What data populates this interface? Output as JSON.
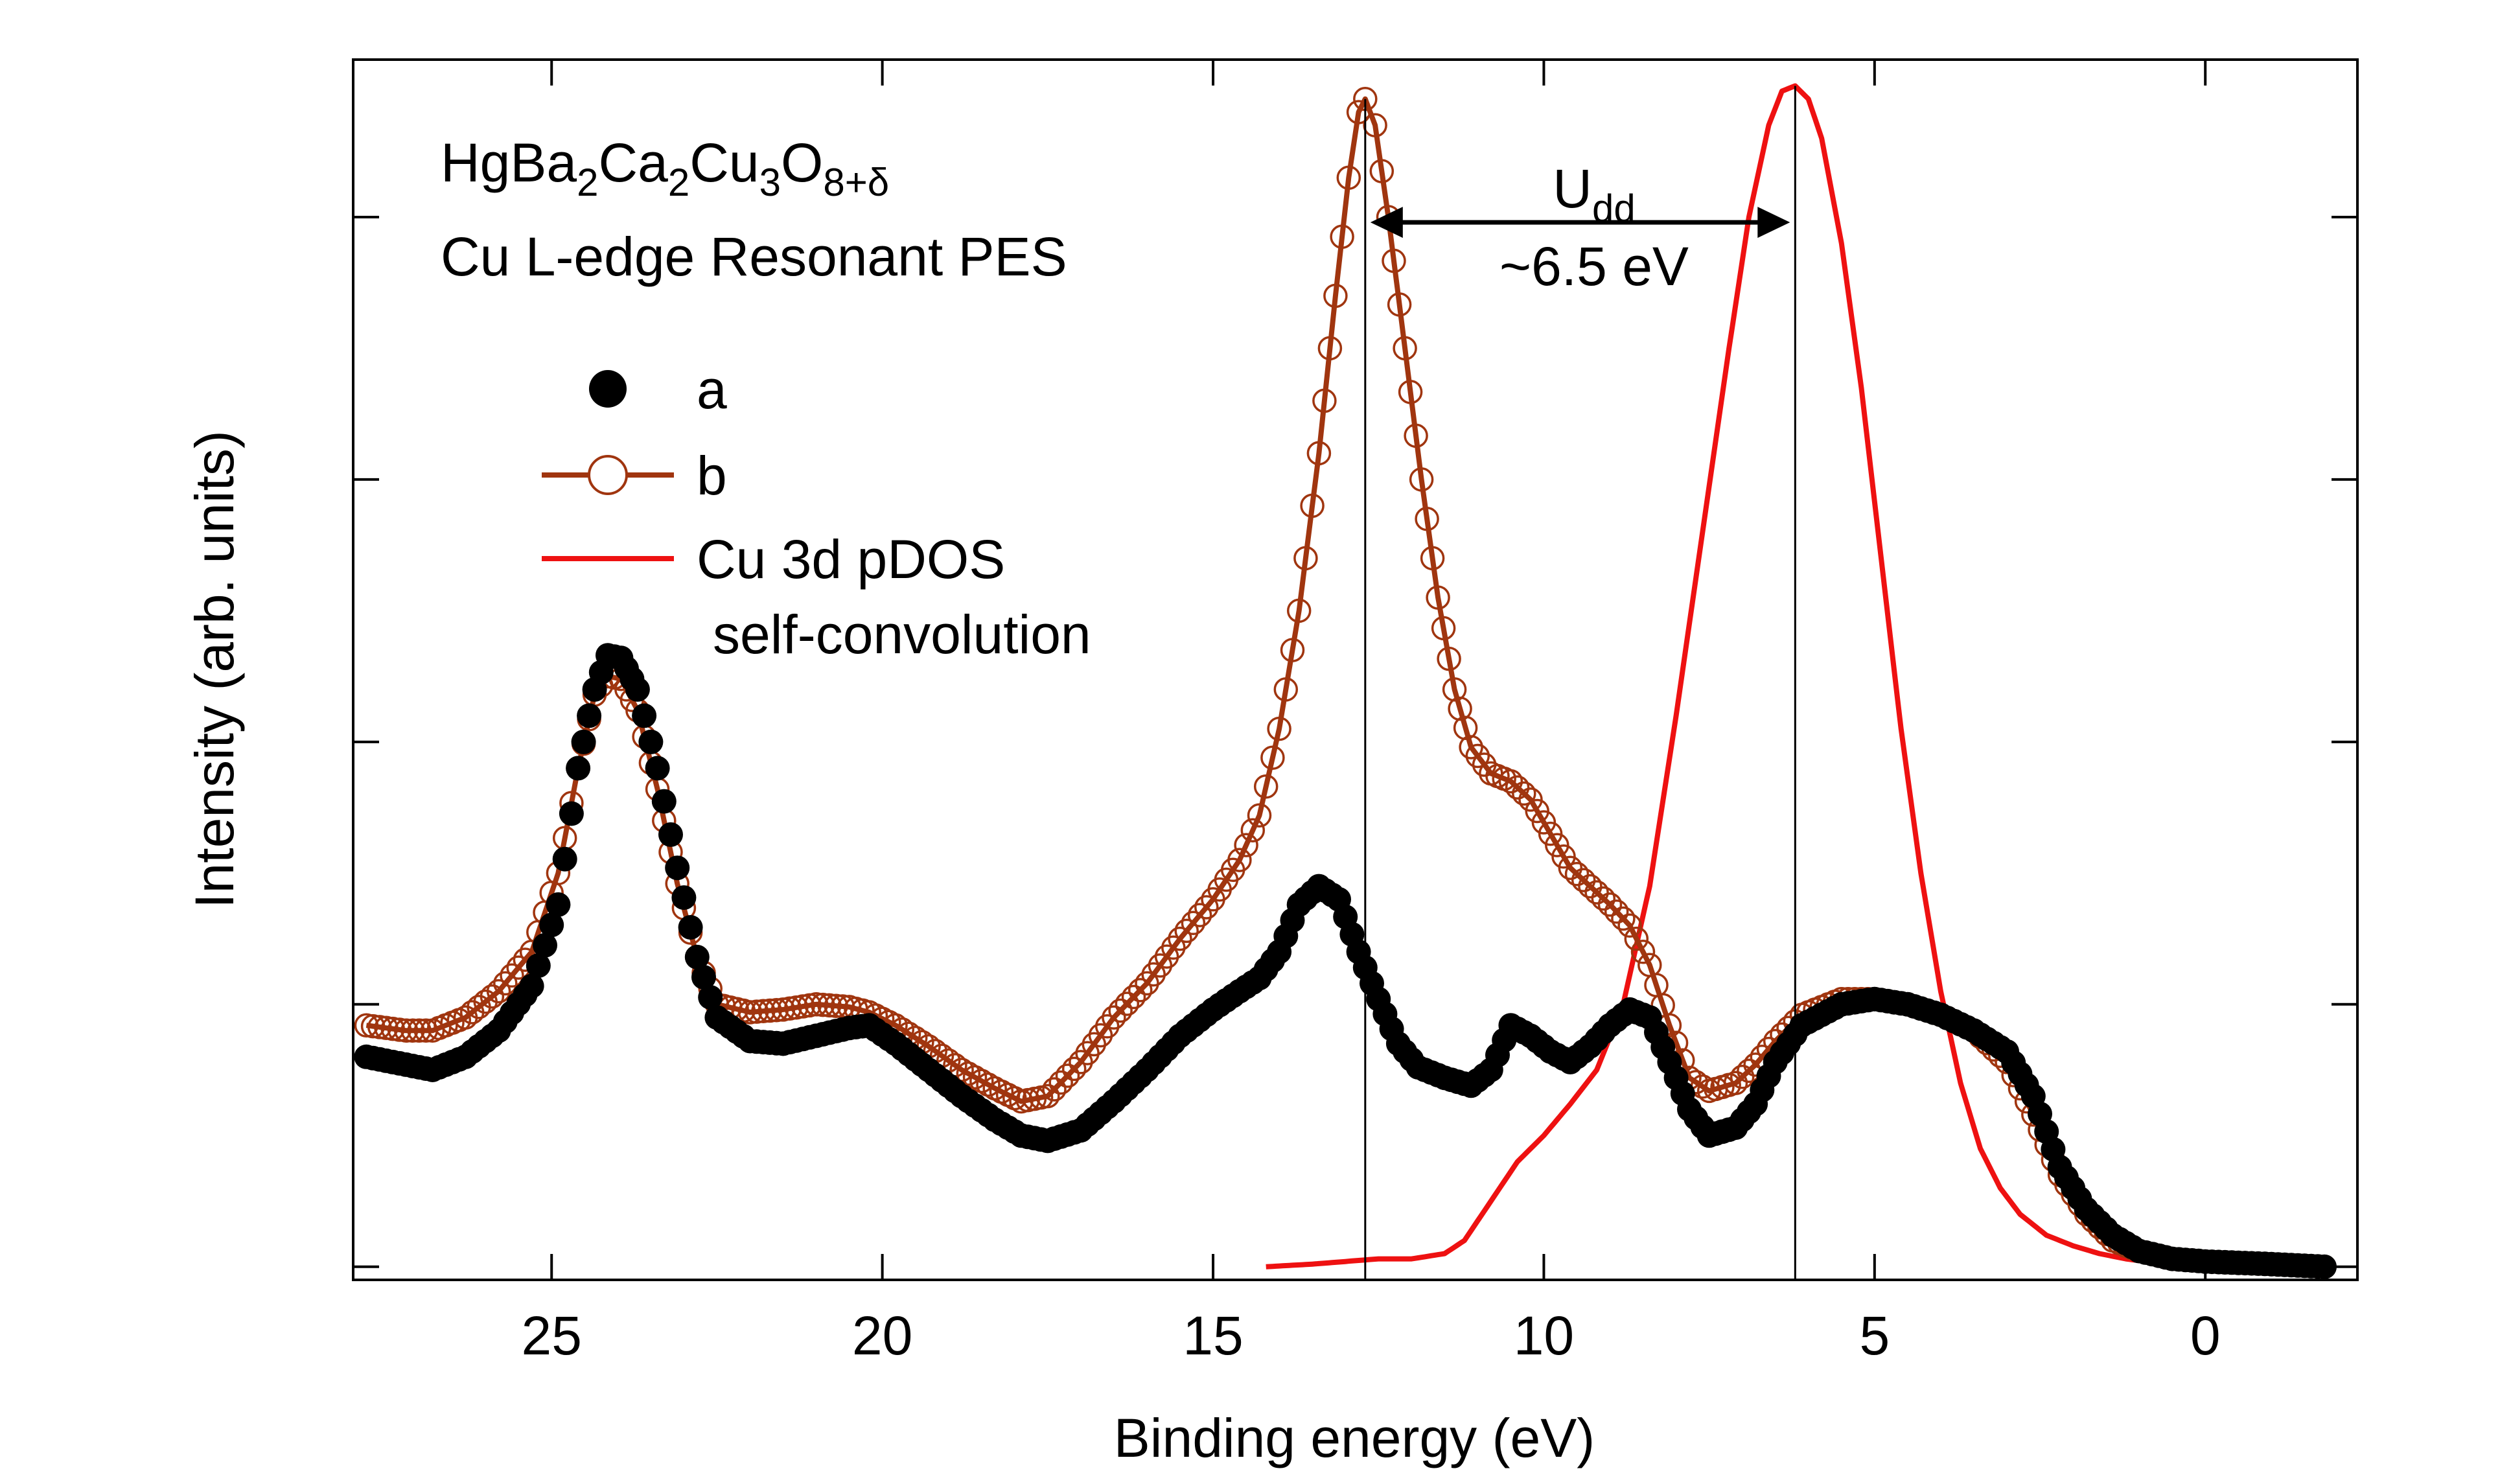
{
  "chart_data": {
    "type": "line",
    "title_lines": {
      "compound": {
        "base": "HgBa",
        "sub1": "2",
        "mid1": "Ca",
        "sub2": "2",
        "mid2": "Cu",
        "sub3": "3",
        "mid3": "O",
        "sub4": "8+δ"
      },
      "line2": "Cu L-edge Resonant PES"
    },
    "xlabel": "Binding energy (eV)",
    "ylabel": "Intensity (arb. units)",
    "x_reversed": true,
    "xlim": [
      28,
      -2.3
    ],
    "ylim": [
      -0.05,
      4.6
    ],
    "xticks": [
      25,
      20,
      15,
      10,
      5,
      0
    ],
    "xtick_labels": [
      "25",
      "20",
      "15",
      "10",
      "5",
      "0"
    ],
    "yticks": [
      0,
      1,
      2,
      3,
      4
    ],
    "legend": {
      "position": "upper-left",
      "entries": [
        {
          "label": "a",
          "marker": "filled-circle",
          "color": "#000000"
        },
        {
          "label": "b",
          "marker": "open-circle-line",
          "color": "#a0350f"
        },
        {
          "label": "Cu 3d pDOS",
          "label2": "self-convolution",
          "marker": "line",
          "color": "#ee1111"
        }
      ]
    },
    "annotation": {
      "udd_base": "U",
      "udd_sub": "dd",
      "udd_value": "~6.5 eV",
      "from_x": 12.7,
      "to_x": 6.2,
      "at_y": 3.98,
      "vlines_x": [
        12.7,
        6.2
      ]
    },
    "series": [
      {
        "name": "a",
        "color": "#000000",
        "marker": "filled",
        "points": [
          [
            27.8,
            0.8
          ],
          [
            27.2,
            0.77
          ],
          [
            26.8,
            0.75
          ],
          [
            26.3,
            0.8
          ],
          [
            25.8,
            0.9
          ],
          [
            25.3,
            1.07
          ],
          [
            24.9,
            1.38
          ],
          [
            24.6,
            1.9
          ],
          [
            24.35,
            2.2
          ],
          [
            24.15,
            2.33
          ],
          [
            23.95,
            2.32
          ],
          [
            23.7,
            2.2
          ],
          [
            23.4,
            1.9
          ],
          [
            23.1,
            1.52
          ],
          [
            22.8,
            1.18
          ],
          [
            22.5,
            0.95
          ],
          [
            22,
            0.86
          ],
          [
            21.5,
            0.85
          ],
          [
            21,
            0.88
          ],
          [
            20.5,
            0.91
          ],
          [
            20.2,
            0.92
          ],
          [
            19.8,
            0.85
          ],
          [
            19.3,
            0.75
          ],
          [
            18.8,
            0.65
          ],
          [
            18.3,
            0.56
          ],
          [
            17.9,
            0.5
          ],
          [
            17.5,
            0.48
          ],
          [
            17,
            0.52
          ],
          [
            16.5,
            0.63
          ],
          [
            16,
            0.75
          ],
          [
            15.5,
            0.88
          ],
          [
            15,
            0.98
          ],
          [
            14.6,
            1.05
          ],
          [
            14.3,
            1.1
          ],
          [
            14,
            1.2
          ],
          [
            13.7,
            1.38
          ],
          [
            13.4,
            1.45
          ],
          [
            13.1,
            1.4
          ],
          [
            12.8,
            1.2
          ],
          [
            12.5,
            1.02
          ],
          [
            12.2,
            0.85
          ],
          [
            11.9,
            0.76
          ],
          [
            11.5,
            0.72
          ],
          [
            11.1,
            0.69
          ],
          [
            10.8,
            0.75
          ],
          [
            10.5,
            0.92
          ],
          [
            10.2,
            0.88
          ],
          [
            9.9,
            0.82
          ],
          [
            9.6,
            0.78
          ],
          [
            9.3,
            0.84
          ],
          [
            9,
            0.92
          ],
          [
            8.7,
            0.98
          ],
          [
            8.4,
            0.95
          ],
          [
            8.1,
            0.78
          ],
          [
            7.8,
            0.6
          ],
          [
            7.5,
            0.5
          ],
          [
            7.1,
            0.53
          ],
          [
            6.8,
            0.62
          ],
          [
            6.5,
            0.78
          ],
          [
            6.1,
            0.92
          ],
          [
            5.5,
            1.0
          ],
          [
            5,
            1.02
          ],
          [
            4.5,
            1.0
          ],
          [
            4,
            0.96
          ],
          [
            3.5,
            0.9
          ],
          [
            3,
            0.82
          ],
          [
            2.6,
            0.65
          ],
          [
            2.2,
            0.38
          ],
          [
            1.8,
            0.22
          ],
          [
            1.4,
            0.12
          ],
          [
            1,
            0.06
          ],
          [
            0.5,
            0.03
          ],
          [
            0,
            0.02
          ],
          [
            -1,
            0.01
          ],
          [
            -1.8,
            0.0
          ]
        ]
      },
      {
        "name": "b",
        "color": "#a0350f",
        "marker": "open",
        "points": [
          [
            27.8,
            0.92
          ],
          [
            27.2,
            0.9
          ],
          [
            26.8,
            0.9
          ],
          [
            26.3,
            0.95
          ],
          [
            25.8,
            1.05
          ],
          [
            25.3,
            1.2
          ],
          [
            24.9,
            1.5
          ],
          [
            24.6,
            1.9
          ],
          [
            24.35,
            2.18
          ],
          [
            24.15,
            2.25
          ],
          [
            23.95,
            2.24
          ],
          [
            23.7,
            2.12
          ],
          [
            23.4,
            1.82
          ],
          [
            23.1,
            1.46
          ],
          [
            22.8,
            1.18
          ],
          [
            22.5,
            1.0
          ],
          [
            22,
            0.97
          ],
          [
            21.5,
            0.98
          ],
          [
            21,
            1.0
          ],
          [
            20.5,
            0.99
          ],
          [
            20.2,
            0.97
          ],
          [
            19.8,
            0.92
          ],
          [
            19.3,
            0.84
          ],
          [
            18.8,
            0.75
          ],
          [
            18.3,
            0.68
          ],
          [
            17.9,
            0.63
          ],
          [
            17.5,
            0.65
          ],
          [
            17,
            0.78
          ],
          [
            16.5,
            0.95
          ],
          [
            16,
            1.08
          ],
          [
            15.5,
            1.25
          ],
          [
            15,
            1.4
          ],
          [
            14.6,
            1.55
          ],
          [
            14.3,
            1.72
          ],
          [
            14,
            2.05
          ],
          [
            13.7,
            2.5
          ],
          [
            13.4,
            3.1
          ],
          [
            13.15,
            3.7
          ],
          [
            12.95,
            4.15
          ],
          [
            12.8,
            4.4
          ],
          [
            12.7,
            4.45
          ],
          [
            12.55,
            4.35
          ],
          [
            12.35,
            4.0
          ],
          [
            12.1,
            3.5
          ],
          [
            11.85,
            3.0
          ],
          [
            11.6,
            2.55
          ],
          [
            11.35,
            2.2
          ],
          [
            11.1,
            1.98
          ],
          [
            10.8,
            1.88
          ],
          [
            10.5,
            1.85
          ],
          [
            10.2,
            1.78
          ],
          [
            9.9,
            1.65
          ],
          [
            9.6,
            1.52
          ],
          [
            9.3,
            1.45
          ],
          [
            9,
            1.38
          ],
          [
            8.7,
            1.3
          ],
          [
            8.4,
            1.15
          ],
          [
            8.1,
            0.92
          ],
          [
            7.8,
            0.72
          ],
          [
            7.5,
            0.67
          ],
          [
            7.1,
            0.7
          ],
          [
            6.8,
            0.77
          ],
          [
            6.5,
            0.86
          ],
          [
            6.1,
            0.96
          ],
          [
            5.5,
            1.02
          ],
          [
            5,
            1.02
          ],
          [
            4.5,
            1.0
          ],
          [
            4,
            0.96
          ],
          [
            3.5,
            0.9
          ],
          [
            3,
            0.78
          ],
          [
            2.6,
            0.58
          ],
          [
            2.2,
            0.35
          ],
          [
            1.8,
            0.2
          ],
          [
            1.4,
            0.1
          ],
          [
            1,
            0.06
          ],
          [
            0.5,
            0.03
          ],
          [
            0,
            0.02
          ],
          [
            -1,
            0.01
          ],
          [
            -1.8,
            0.0
          ]
        ]
      },
      {
        "name": "Cu 3d pDOS self-convolution",
        "color": "#ee1111",
        "marker": "none",
        "points": [
          [
            14.2,
            0.0
          ],
          [
            13.5,
            0.01
          ],
          [
            13,
            0.02
          ],
          [
            12.5,
            0.03
          ],
          [
            12,
            0.03
          ],
          [
            11.5,
            0.05
          ],
          [
            11.2,
            0.1
          ],
          [
            10.8,
            0.25
          ],
          [
            10.4,
            0.4
          ],
          [
            10,
            0.5
          ],
          [
            9.6,
            0.62
          ],
          [
            9.2,
            0.75
          ],
          [
            8.8,
            1.0
          ],
          [
            8.4,
            1.45
          ],
          [
            8,
            2.1
          ],
          [
            7.6,
            2.8
          ],
          [
            7.2,
            3.5
          ],
          [
            6.9,
            4.0
          ],
          [
            6.6,
            4.35
          ],
          [
            6.4,
            4.48
          ],
          [
            6.2,
            4.5
          ],
          [
            6.0,
            4.45
          ],
          [
            5.8,
            4.3
          ],
          [
            5.5,
            3.9
          ],
          [
            5.2,
            3.35
          ],
          [
            4.9,
            2.7
          ],
          [
            4.6,
            2.05
          ],
          [
            4.3,
            1.5
          ],
          [
            4,
            1.05
          ],
          [
            3.7,
            0.7
          ],
          [
            3.4,
            0.45
          ],
          [
            3.1,
            0.3
          ],
          [
            2.8,
            0.2
          ],
          [
            2.4,
            0.12
          ],
          [
            2,
            0.08
          ],
          [
            1.6,
            0.05
          ],
          [
            1.2,
            0.03
          ],
          [
            0.6,
            0.01
          ],
          [
            0.2,
            0.0
          ]
        ]
      }
    ]
  }
}
